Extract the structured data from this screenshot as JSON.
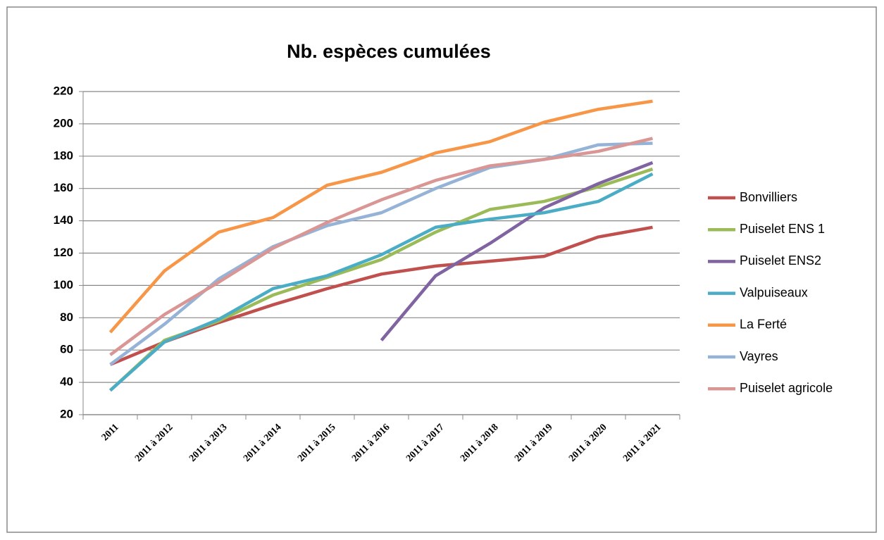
{
  "chart_data": {
    "type": "line",
    "title": "Nb. espèces cumulées",
    "categories": [
      "2011",
      "2011 à 2012",
      "2011 à 2013",
      "2011 à 2014",
      "2011 à 2015",
      "2011 à 2016",
      "2011 à 2017",
      "2011 à 2018",
      "2011 à 2019",
      "2011 à 2020",
      "2011 à 2021"
    ],
    "series": [
      {
        "name": "Bonvilliers",
        "color": "#c0504d",
        "values": [
          51,
          65,
          77,
          88,
          98,
          107,
          112,
          115,
          118,
          130,
          136
        ]
      },
      {
        "name": "Puiselet ENS 1",
        "color": "#9bbb59",
        "values": [
          35,
          66,
          78,
          94,
          105,
          116,
          133,
          147,
          152,
          161,
          172
        ]
      },
      {
        "name": "Puiselet ENS2",
        "color": "#8064a2",
        "values": [
          null,
          null,
          null,
          null,
          null,
          66,
          106,
          126,
          148,
          163,
          176
        ]
      },
      {
        "name": "Valpuiseaux",
        "color": "#4bacc6",
        "values": [
          35,
          65,
          79,
          98,
          106,
          119,
          136,
          141,
          145,
          152,
          169
        ]
      },
      {
        "name": "La Ferté",
        "color": "#f79646",
        "values": [
          71,
          109,
          133,
          142,
          162,
          170,
          182,
          189,
          201,
          209,
          214
        ]
      },
      {
        "name": "Vayres",
        "color": "#95b3d7",
        "values": [
          51,
          76,
          104,
          124,
          137,
          145,
          160,
          173,
          178,
          187,
          188
        ]
      },
      {
        "name": "Puiselet agricole",
        "color": "#d99694",
        "values": [
          57,
          82,
          102,
          123,
          139,
          153,
          165,
          174,
          178,
          183,
          191
        ]
      }
    ],
    "ylim": [
      20,
      220
    ],
    "yticks": [
      20,
      40,
      60,
      80,
      100,
      120,
      140,
      160,
      180,
      200,
      220
    ],
    "grid": true,
    "legend": "right"
  }
}
